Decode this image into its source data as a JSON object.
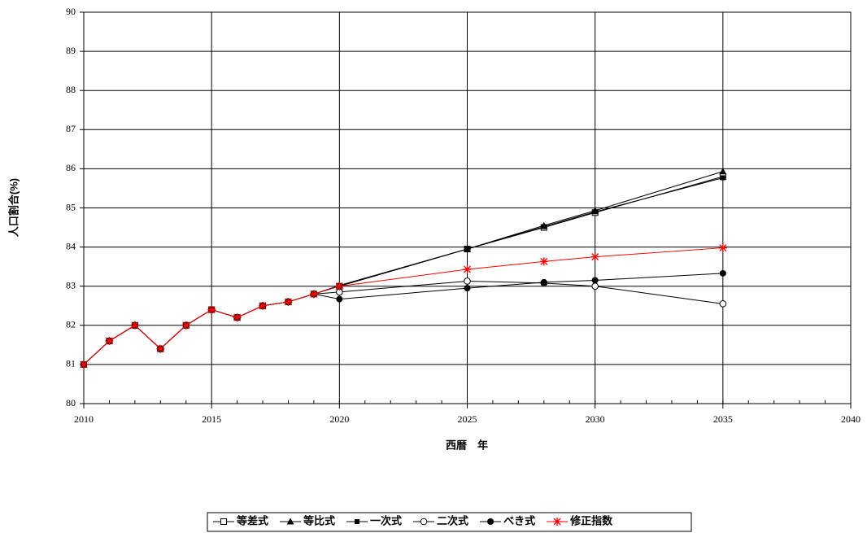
{
  "chart_data": {
    "type": "line",
    "x_label": "西暦　年",
    "y_label": "人口割合(%)",
    "x": [
      2010,
      2011,
      2012,
      2013,
      2014,
      2015,
      2016,
      2017,
      2018,
      2019,
      2020,
      2025,
      2028,
      2030,
      2035
    ],
    "xlim": [
      2010,
      2040
    ],
    "xticks": [
      2010,
      2015,
      2020,
      2025,
      2030,
      2035,
      2040
    ],
    "ylim": [
      80,
      90
    ],
    "yticks": [
      80,
      81,
      82,
      83,
      84,
      85,
      86,
      87,
      88,
      89,
      90
    ],
    "grid": true,
    "legend": "bottom",
    "series": [
      {
        "name": "等差式",
        "color": "#000000",
        "marker": "square-open",
        "values": [
          81.0,
          81.6,
          82.0,
          81.4,
          82.0,
          82.4,
          82.2,
          82.5,
          82.6,
          82.8,
          83.0,
          83.95,
          84.5,
          84.88,
          85.8
        ]
      },
      {
        "name": "等比式",
        "color": "#000000",
        "marker": "triangle",
        "values": [
          81.0,
          81.6,
          82.0,
          81.4,
          82.0,
          82.4,
          82.2,
          82.5,
          82.6,
          82.8,
          83.02,
          83.95,
          84.55,
          84.93,
          85.93
        ]
      },
      {
        "name": "一次式",
        "color": "#000000",
        "marker": "square-small",
        "values": [
          81.0,
          81.6,
          82.0,
          81.4,
          82.0,
          82.4,
          82.2,
          82.5,
          82.6,
          82.8,
          83.0,
          83.95,
          84.52,
          84.9,
          85.77
        ]
      },
      {
        "name": "二次式",
        "color": "#000000",
        "marker": "circle-open",
        "values": [
          81.0,
          81.6,
          82.0,
          81.4,
          82.0,
          82.4,
          82.2,
          82.5,
          82.6,
          82.8,
          82.85,
          83.13,
          83.08,
          83.0,
          82.55
        ]
      },
      {
        "name": "べき式",
        "color": "#000000",
        "marker": "circle",
        "values": [
          81.0,
          81.6,
          82.0,
          81.4,
          82.0,
          82.4,
          82.2,
          82.5,
          82.6,
          82.8,
          82.67,
          82.95,
          83.1,
          83.15,
          83.33
        ]
      },
      {
        "name": "修正指数",
        "color": "#ff0000",
        "marker": "asterisk",
        "values": [
          81.0,
          81.6,
          82.0,
          81.4,
          82.0,
          82.4,
          82.2,
          82.5,
          82.6,
          82.8,
          83.0,
          83.43,
          83.63,
          83.75,
          83.98
        ]
      }
    ]
  }
}
